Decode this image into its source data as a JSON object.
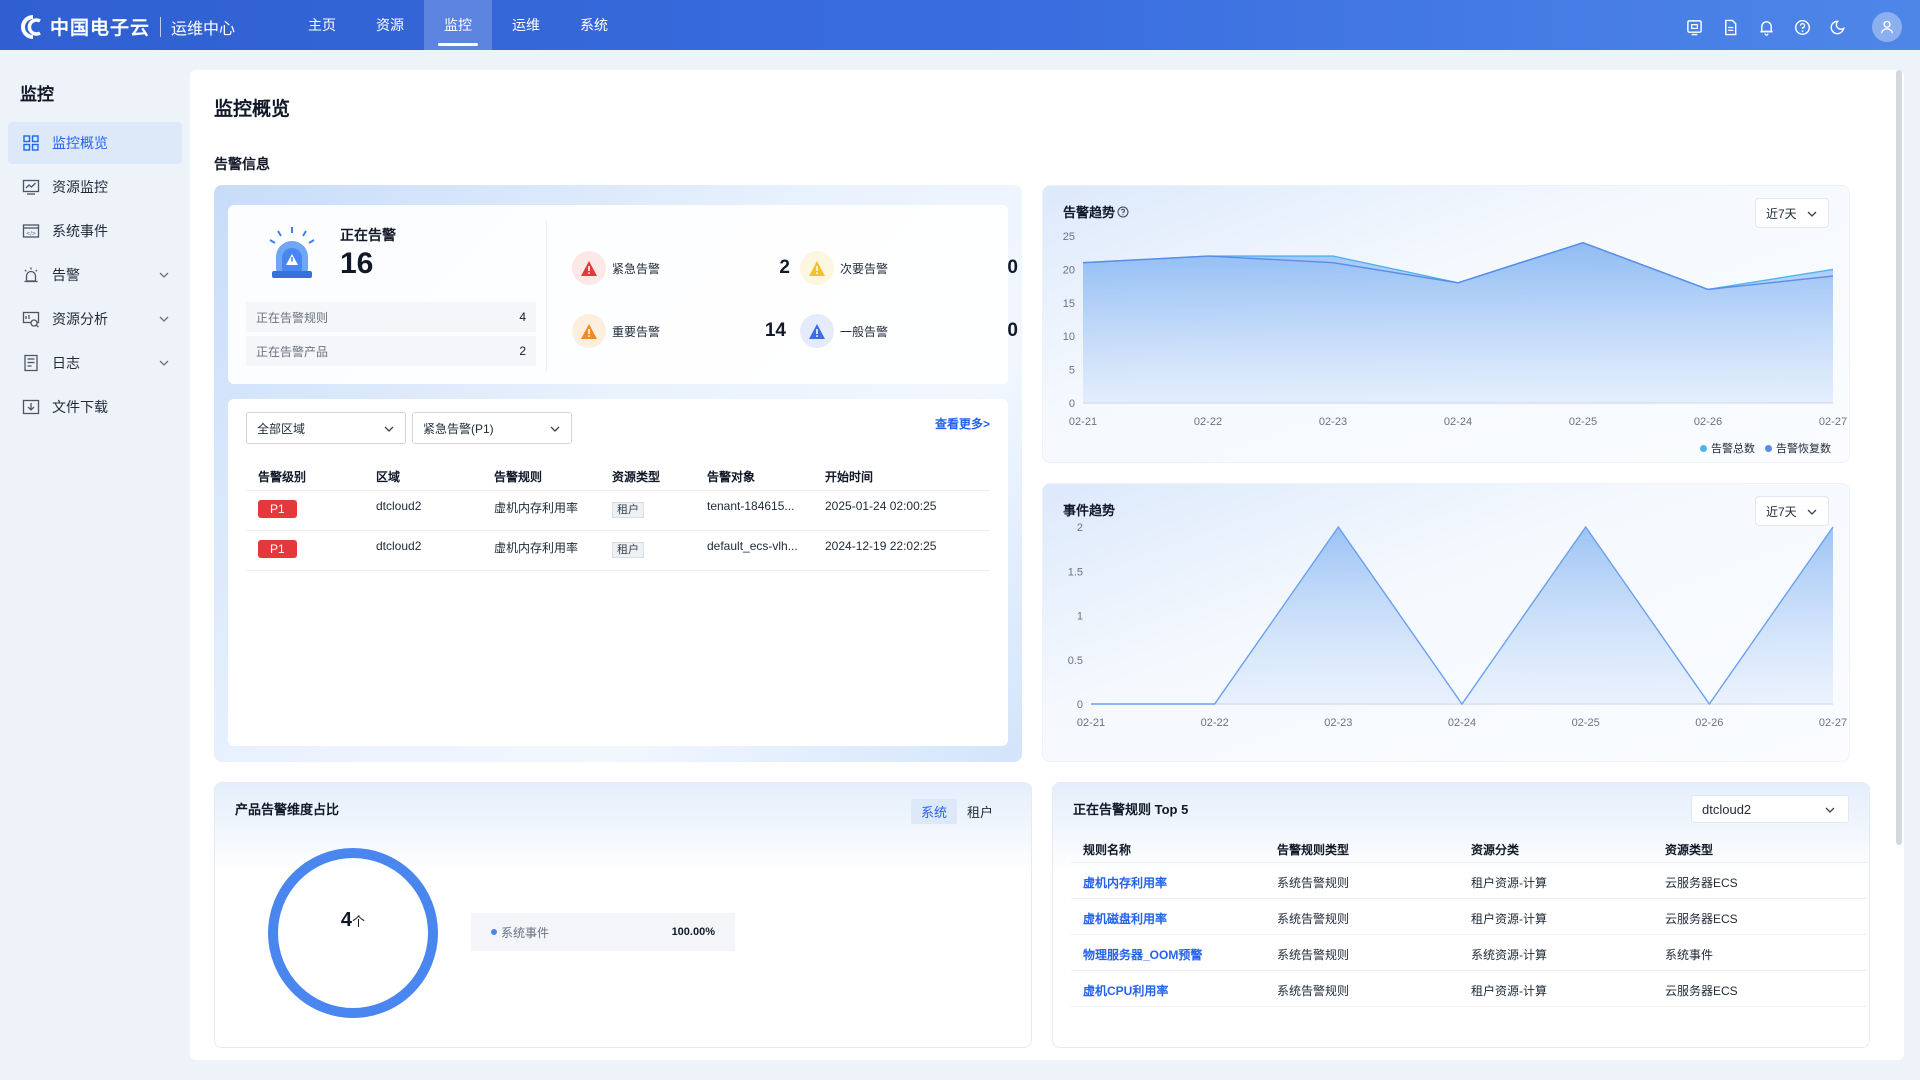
{
  "header": {
    "brand": "中国电子云",
    "subtitle": "运维中心",
    "nav": [
      {
        "label": "主页"
      },
      {
        "label": "资源"
      },
      {
        "label": "监控"
      },
      {
        "label": "运维"
      },
      {
        "label": "系统"
      }
    ],
    "active_nav": "监控",
    "icons": [
      "screen-icon",
      "document-icon",
      "bell-icon",
      "help-icon",
      "moon-icon",
      "user-icon"
    ]
  },
  "sidebar": {
    "title": "监控",
    "items": [
      {
        "label": "监控概览",
        "icon": "grid-icon",
        "active": true,
        "expandable": false
      },
      {
        "label": "资源监控",
        "icon": "monitor-chart-icon",
        "active": false,
        "expandable": false
      },
      {
        "label": "系统事件",
        "icon": "system-event-icon",
        "active": false,
        "expandable": false
      },
      {
        "label": "告警",
        "icon": "alarm-lamp-icon",
        "active": false,
        "expandable": true
      },
      {
        "label": "资源分析",
        "icon": "analysis-icon",
        "active": false,
        "expandable": true
      },
      {
        "label": "日志",
        "icon": "log-icon",
        "active": false,
        "expandable": true
      },
      {
        "label": "文件下载",
        "icon": "download-icon",
        "active": false,
        "expandable": false
      }
    ]
  },
  "page": {
    "title": "监控概览",
    "section_alarm": "告警信息"
  },
  "alarm_summary": {
    "firing_label": "正在告警",
    "firing_count": "16",
    "rules_label": "正在告警规则",
    "rules_count": "4",
    "products_label": "正在告警产品",
    "products_count": "2",
    "severities": [
      {
        "label": "紧急告警",
        "value": "2",
        "color": "#e5383b",
        "bg": "#fde8e8"
      },
      {
        "label": "次要告警",
        "value": "0",
        "color": "#f6c12b",
        "bg": "#fdf6e0"
      },
      {
        "label": "重要告警",
        "value": "14",
        "color": "#f08a24",
        "bg": "#fdeede"
      },
      {
        "label": "一般告警",
        "value": "0",
        "color": "#3b6fe0",
        "bg": "#e4ecfb"
      }
    ]
  },
  "alarm_list": {
    "region_select": "全部区域",
    "level_select": "紧急告警(P1)",
    "more_link": "查看更多>",
    "columns": [
      "告警级别",
      "区域",
      "告警规则",
      "资源类型",
      "告警对象",
      "开始时间"
    ],
    "rows": [
      {
        "level": "P1",
        "region": "dtcloud2",
        "rule": "虚机内存利用率",
        "type": "租户",
        "target": "tenant-184615...",
        "start": "2025-01-24 02:00:25"
      },
      {
        "level": "P1",
        "region": "dtcloud2",
        "rule": "虚机内存利用率",
        "type": "租户",
        "target": "default_ecs-vlh...",
        "start": "2024-12-19 22:02:25"
      }
    ]
  },
  "alarm_trend": {
    "title": "告警趋势",
    "range": "近7天",
    "legend": [
      {
        "label": "告警总数",
        "color": "#4fb3ea"
      },
      {
        "label": "告警恢复数",
        "color": "#5a8bea"
      }
    ]
  },
  "event_trend": {
    "title": "事件趋势",
    "range": "近7天"
  },
  "chart_data": [
    {
      "type": "area",
      "title": "告警趋势",
      "x": [
        "02-21",
        "02-22",
        "02-23",
        "02-24",
        "02-25",
        "02-26",
        "02-27"
      ],
      "y_ticks": [
        "0",
        "5",
        "10",
        "15",
        "20",
        "25"
      ],
      "ylim": [
        0,
        25
      ],
      "series": [
        {
          "name": "告警总数",
          "values": [
            21,
            22,
            22,
            18,
            24,
            17,
            20
          ],
          "color": "#4fb3ea"
        },
        {
          "name": "告警恢复数",
          "values": [
            21,
            22,
            21,
            18,
            24,
            17,
            19
          ],
          "color": "#5a8bea"
        }
      ]
    },
    {
      "type": "area",
      "title": "事件趋势",
      "x": [
        "02-21",
        "02-22",
        "02-23",
        "02-24",
        "02-25",
        "02-26",
        "02-27"
      ],
      "y_ticks": [
        "0",
        "0.5",
        "1",
        "1.5",
        "2"
      ],
      "ylim": [
        0,
        2
      ],
      "series": [
        {
          "values": [
            0,
            0,
            2,
            0,
            2,
            0,
            2
          ],
          "color": "#6aa0ee"
        }
      ]
    },
    {
      "type": "pie",
      "title": "产品告警维度占比",
      "total": "4",
      "unit": "个",
      "slices": [
        {
          "label": "系统事件",
          "value": 100.0,
          "percent": "100.00%",
          "color": "#4a86f0"
        }
      ]
    }
  ],
  "product_ratio": {
    "title": "产品告警维度占比",
    "tabs": [
      "系统",
      "租户"
    ],
    "active_tab": "系统"
  },
  "top_rules": {
    "title": "正在告警规则 Top 5",
    "region": "dtcloud2",
    "columns": [
      "规则名称",
      "告警规则类型",
      "资源分类",
      "资源类型"
    ],
    "rows": [
      {
        "name": "虚机内存利用率",
        "rule_type": "系统告警规则",
        "category": "租户资源-计算",
        "res_type": "云服务器ECS"
      },
      {
        "name": "虚机磁盘利用率",
        "rule_type": "系统告警规则",
        "category": "租户资源-计算",
        "res_type": "云服务器ECS"
      },
      {
        "name": "物理服务器_OOM预警",
        "rule_type": "系统告警规则",
        "category": "系统资源-计算",
        "res_type": "系统事件"
      },
      {
        "name": "虚机CPU利用率",
        "rule_type": "系统告警规则",
        "category": "租户资源-计算",
        "res_type": "云服务器ECS"
      }
    ]
  }
}
